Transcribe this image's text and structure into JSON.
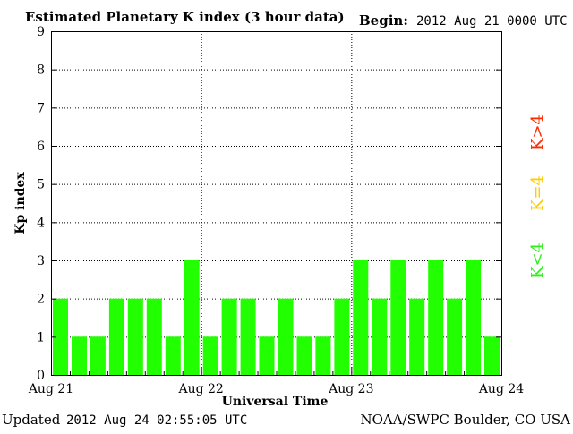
{
  "header": {
    "title": "Estimated Planetary K index (3 hour data)",
    "begin_label": "Begin:",
    "begin_value": "2012 Aug 21 0000 UTC"
  },
  "footer": {
    "updated_label": "Updated",
    "updated_value": "2012 Aug 24 02:55:05 UTC",
    "credit": "NOAA/SWPC Boulder, CO USA"
  },
  "legend": {
    "high": "K>4",
    "mid": "K=4",
    "low": "K<4",
    "high_color": "#ff2a00",
    "mid_color": "#ffcc00",
    "low_color": "#33ee22"
  },
  "colors": {
    "bar": "#22ff00",
    "axis": "#000000",
    "grid": "#000000",
    "background": "#ffffff"
  },
  "chart_data": {
    "type": "bar",
    "title": "Estimated Planetary K index (3 hour data)",
    "xlabel": "Universal Time",
    "ylabel": "Kp index",
    "ylim": [
      0,
      9
    ],
    "yticks": [
      "0",
      "1",
      "2",
      "3",
      "4",
      "5",
      "6",
      "7",
      "8",
      "9"
    ],
    "xticks": [
      "Aug 21",
      "Aug 22",
      "Aug 23",
      "Aug 24"
    ],
    "grid": true,
    "values": [
      2,
      1,
      1,
      2,
      2,
      2,
      1,
      3,
      1,
      2,
      2,
      1,
      2,
      1,
      1,
      2,
      3,
      2,
      3,
      2,
      3,
      2,
      3,
      1
    ]
  }
}
